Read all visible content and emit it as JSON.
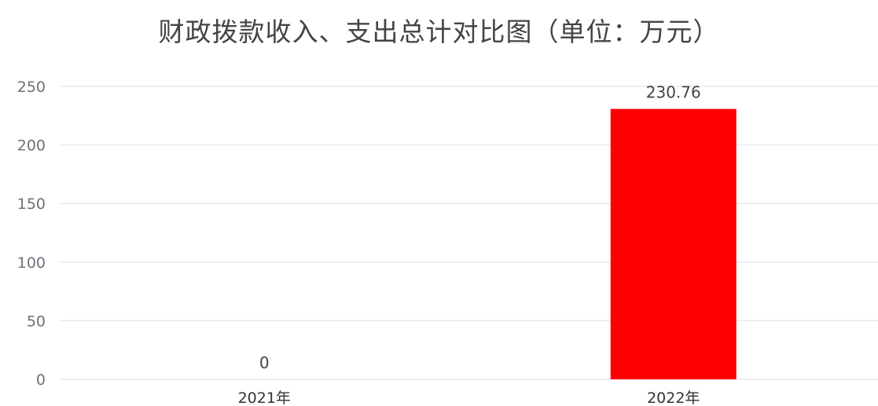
{
  "chart_data": {
    "type": "bar",
    "title": "财政拨款收入、支出总计对比图（单位：万元）",
    "categories": [
      "2021年",
      "2022年"
    ],
    "values": [
      0,
      230.76
    ],
    "data_labels": [
      "0",
      "230.76"
    ],
    "ylim": [
      0,
      250
    ],
    "yticks": [
      0,
      50,
      100,
      150,
      200,
      250
    ],
    "ytick_labels": [
      "0",
      "50",
      "100",
      "150",
      "200",
      "250"
    ],
    "bar_colors": [
      "#ff0000",
      "#ff0000"
    ],
    "grid": true,
    "legend": false
  }
}
